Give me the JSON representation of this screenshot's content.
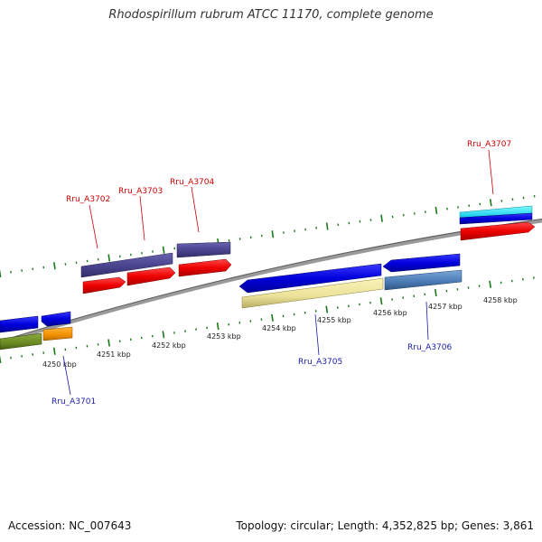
{
  "title": "Rhodospirillum rubrum ATCC 11170, complete genome",
  "footer": {
    "accession": "Accession: NC_007643",
    "summary": "Topology: circular; Length: 4,352,825 bp; Genes: 3,861"
  },
  "colors": {
    "backbone": "#8c8c8c",
    "tick_major": "#1a7a1a",
    "tick_minor": "#1a7a1a",
    "label_forward": "#cc0000",
    "label_reverse": "#1a1aaa",
    "kbp_label": "#222222"
  },
  "kbp_labels": [
    {
      "text": "4250 kbp"
    },
    {
      "text": "4251 kbp"
    },
    {
      "text": "4252 kbp"
    },
    {
      "text": "4253 kbp"
    },
    {
      "text": "4254 kbp"
    },
    {
      "text": "4255 kbp"
    },
    {
      "text": "4256 kbp"
    },
    {
      "text": "4257 kbp"
    },
    {
      "text": "4258 kbp"
    }
  ],
  "genes": [
    {
      "id": "Rru_A3701",
      "strand": "reverse"
    },
    {
      "id": "Rru_A3702",
      "strand": "forward"
    },
    {
      "id": "Rru_A3703",
      "strand": "forward"
    },
    {
      "id": "Rru_A3704",
      "strand": "forward"
    },
    {
      "id": "Rru_A3705",
      "strand": "reverse"
    },
    {
      "id": "Rru_A3706",
      "strand": "reverse"
    },
    {
      "id": "Rru_A3707",
      "strand": "forward"
    }
  ]
}
